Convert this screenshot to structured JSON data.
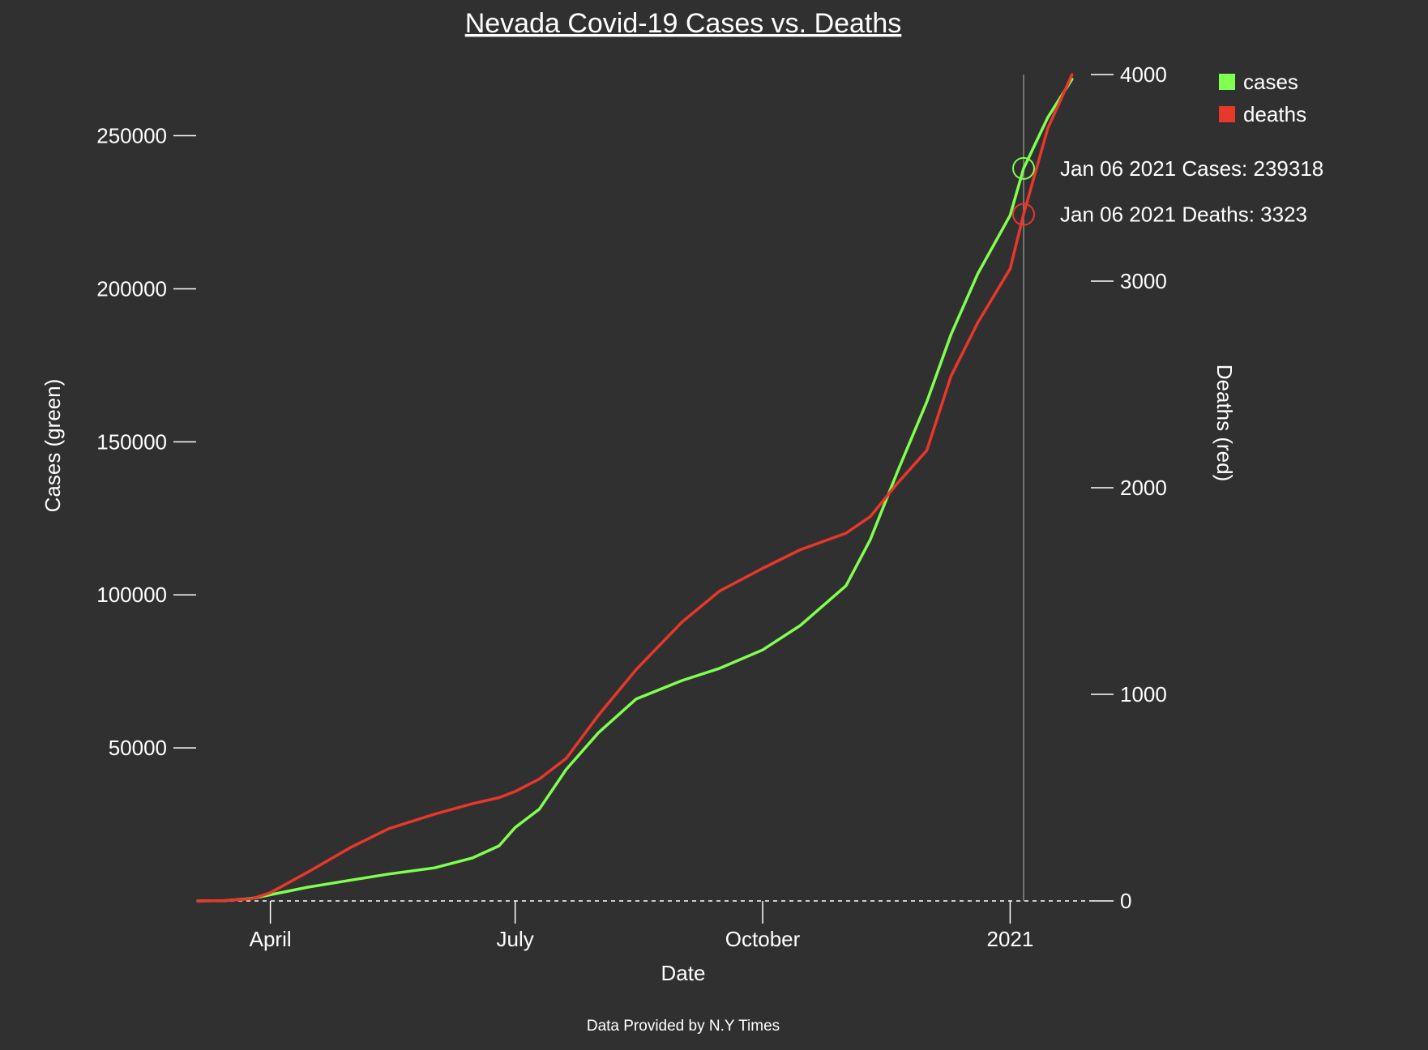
{
  "chart_data": {
    "type": "line",
    "title": "Nevada Covid-19 Cases vs. Deaths",
    "xlabel": "Date",
    "ylabel_left": "Cases (green)",
    "ylabel_right": "Deaths (red)",
    "footer": "Data Provided by N.Y Times",
    "x_tick_labels": [
      "April",
      "July",
      "October",
      "2021"
    ],
    "x_tick_dates": [
      "2020-04-01",
      "2020-07-01",
      "2020-10-01",
      "2021-01-01"
    ],
    "xlim": [
      "2020-03-05",
      "2021-01-31"
    ],
    "y_left_ticks": [
      50000,
      100000,
      150000,
      200000,
      250000
    ],
    "y_left_lim": [
      0,
      270000
    ],
    "y_right_ticks": [
      0,
      1000,
      2000,
      3000,
      4000
    ],
    "y_right_lim": [
      0,
      4000
    ],
    "legend_position": "top-right",
    "series": [
      {
        "name": "cases",
        "axis": "left",
        "color": "#7fff4f",
        "x": [
          "2020-03-05",
          "2020-03-15",
          "2020-03-25",
          "2020-04-01",
          "2020-04-15",
          "2020-05-01",
          "2020-05-15",
          "2020-06-01",
          "2020-06-15",
          "2020-06-25",
          "2020-07-01",
          "2020-07-10",
          "2020-07-20",
          "2020-08-01",
          "2020-08-15",
          "2020-09-01",
          "2020-09-15",
          "2020-10-01",
          "2020-10-15",
          "2020-11-01",
          "2020-11-10",
          "2020-11-20",
          "2020-12-01",
          "2020-12-10",
          "2020-12-20",
          "2021-01-01",
          "2021-01-06",
          "2021-01-15",
          "2021-01-24"
        ],
        "y": [
          0,
          100,
          800,
          2000,
          4500,
          6800,
          8800,
          10800,
          14000,
          18000,
          24000,
          30000,
          43000,
          55000,
          66000,
          72000,
          76000,
          82000,
          90000,
          103000,
          118000,
          140000,
          163000,
          185000,
          205000,
          224000,
          239318,
          256000,
          268500
        ]
      },
      {
        "name": "deaths",
        "axis": "right",
        "color": "#e8372b",
        "x": [
          "2020-03-05",
          "2020-03-15",
          "2020-03-25",
          "2020-04-01",
          "2020-04-15",
          "2020-05-01",
          "2020-05-15",
          "2020-06-01",
          "2020-06-15",
          "2020-06-25",
          "2020-07-01",
          "2020-07-10",
          "2020-07-20",
          "2020-08-01",
          "2020-08-15",
          "2020-09-01",
          "2020-09-15",
          "2020-10-01",
          "2020-10-15",
          "2020-11-01",
          "2020-11-10",
          "2020-11-20",
          "2020-12-01",
          "2020-12-10",
          "2020-12-20",
          "2021-01-01",
          "2021-01-06",
          "2021-01-15",
          "2021-01-24"
        ],
        "y": [
          0,
          2,
          10,
          40,
          140,
          260,
          350,
          420,
          470,
          500,
          530,
          590,
          690,
          900,
          1120,
          1350,
          1500,
          1610,
          1700,
          1780,
          1860,
          2020,
          2180,
          2540,
          2800,
          3060,
          3323,
          3740,
          4000
        ]
      }
    ],
    "hover": {
      "date": "2021-01-06",
      "cases_label": "Jan 06 2021 Cases: 239318",
      "deaths_label": "Jan 06 2021 Deaths: 3323"
    }
  }
}
